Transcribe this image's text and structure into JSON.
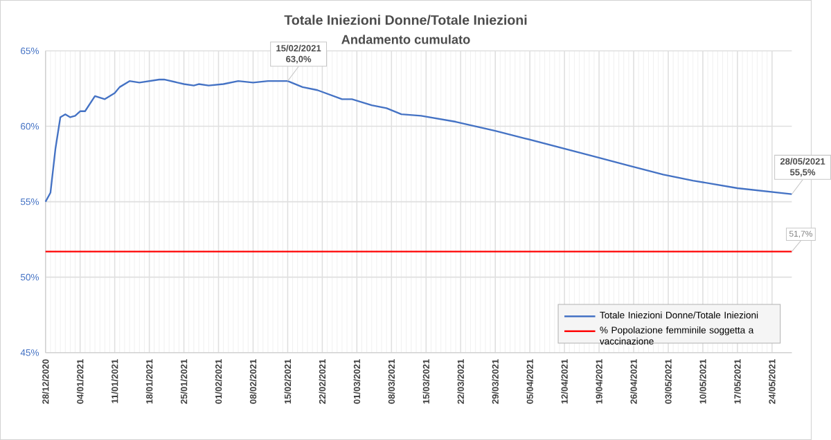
{
  "chart_data": {
    "type": "line",
    "title": "Totale Iniezioni Donne/Totale Iniezioni",
    "subtitle": "Andamento cumulato",
    "xlim": [
      "2020-12-28",
      "2021-05-28"
    ],
    "xticks": [
      {
        "value": "2020-12-28",
        "label": "28/12/2020"
      },
      {
        "value": "2021-01-04",
        "label": "04/01/2021"
      },
      {
        "value": "2021-01-11",
        "label": "11/01/2021"
      },
      {
        "value": "2021-01-18",
        "label": "18/01/2021"
      },
      {
        "value": "2021-01-25",
        "label": "25/01/2021"
      },
      {
        "value": "2021-02-01",
        "label": "01/02/2021"
      },
      {
        "value": "2021-02-08",
        "label": "08/02/2021"
      },
      {
        "value": "2021-02-15",
        "label": "15/02/2021"
      },
      {
        "value": "2021-02-22",
        "label": "22/02/2021"
      },
      {
        "value": "2021-03-01",
        "label": "01/03/2021"
      },
      {
        "value": "2021-03-08",
        "label": "08/03/2021"
      },
      {
        "value": "2021-03-15",
        "label": "15/03/2021"
      },
      {
        "value": "2021-03-22",
        "label": "22/03/2021"
      },
      {
        "value": "2021-03-29",
        "label": "29/03/2021"
      },
      {
        "value": "2021-04-05",
        "label": "05/04/2021"
      },
      {
        "value": "2021-04-12",
        "label": "12/04/2021"
      },
      {
        "value": "2021-04-19",
        "label": "19/04/2021"
      },
      {
        "value": "2021-04-26",
        "label": "26/04/2021"
      },
      {
        "value": "2021-05-03",
        "label": "03/05/2021"
      },
      {
        "value": "2021-05-10",
        "label": "10/05/2021"
      },
      {
        "value": "2021-05-17",
        "label": "17/05/2021"
      },
      {
        "value": "2021-05-24",
        "label": "24/05/2021"
      }
    ],
    "ylim": [
      45,
      65
    ],
    "yticks": [
      {
        "value": 45,
        "label": "45%"
      },
      {
        "value": 50,
        "label": "50%"
      },
      {
        "value": 55,
        "label": "55%"
      },
      {
        "value": 60,
        "label": "60%"
      },
      {
        "value": 65,
        "label": "65%"
      }
    ],
    "grid": true,
    "legend": "bottom right",
    "marker": "none",
    "line_style": "solid",
    "series": [
      {
        "name": "Totale Iniezioni Donne/Totale Iniezioni",
        "color": "#4472c4",
        "x": [
          "2020-12-28",
          "2020-12-29",
          "2020-12-30",
          "2020-12-31",
          "2021-01-01",
          "2021-01-02",
          "2021-01-03",
          "2021-01-04",
          "2021-01-05",
          "2021-01-07",
          "2021-01-09",
          "2021-01-11",
          "2021-01-12",
          "2021-01-14",
          "2021-01-16",
          "2021-01-20",
          "2021-01-21",
          "2021-01-25",
          "2021-01-27",
          "2021-01-28",
          "2021-01-30",
          "2021-02-02",
          "2021-02-05",
          "2021-02-08",
          "2021-02-11",
          "2021-02-15",
          "2021-02-18",
          "2021-02-21",
          "2021-02-26",
          "2021-02-28",
          "2021-03-04",
          "2021-03-07",
          "2021-03-10",
          "2021-03-14",
          "2021-03-21",
          "2021-03-29",
          "2021-04-04",
          "2021-04-11",
          "2021-04-18",
          "2021-04-25",
          "2021-05-02",
          "2021-05-08",
          "2021-05-17",
          "2021-05-28"
        ],
        "values": [
          55.0,
          55.6,
          58.5,
          60.6,
          60.8,
          60.6,
          60.7,
          61.0,
          61.0,
          62.0,
          61.8,
          62.2,
          62.6,
          63.0,
          62.9,
          63.1,
          63.1,
          62.8,
          62.7,
          62.8,
          62.7,
          62.8,
          63.0,
          62.9,
          63.0,
          63.0,
          62.6,
          62.4,
          61.8,
          61.8,
          61.4,
          61.2,
          60.8,
          60.7,
          60.3,
          59.7,
          59.2,
          58.6,
          58.0,
          57.4,
          56.8,
          56.4,
          55.9,
          55.5
        ]
      },
      {
        "name": "% Popolazione femminile soggetta a vaccinazione",
        "color": "#ff0000",
        "x": [
          "2020-12-28",
          "2021-05-28"
        ],
        "values": [
          51.7,
          51.7
        ],
        "value_labels": [
          null,
          "51,7%"
        ]
      }
    ],
    "annotations": [
      {
        "text": "15/02/2021 63,0%",
        "x": "2021-02-15",
        "y": 63.0
      },
      {
        "text": "28/05/2021 55,5%",
        "x": "2021-05-28",
        "y": 55.5
      }
    ]
  }
}
